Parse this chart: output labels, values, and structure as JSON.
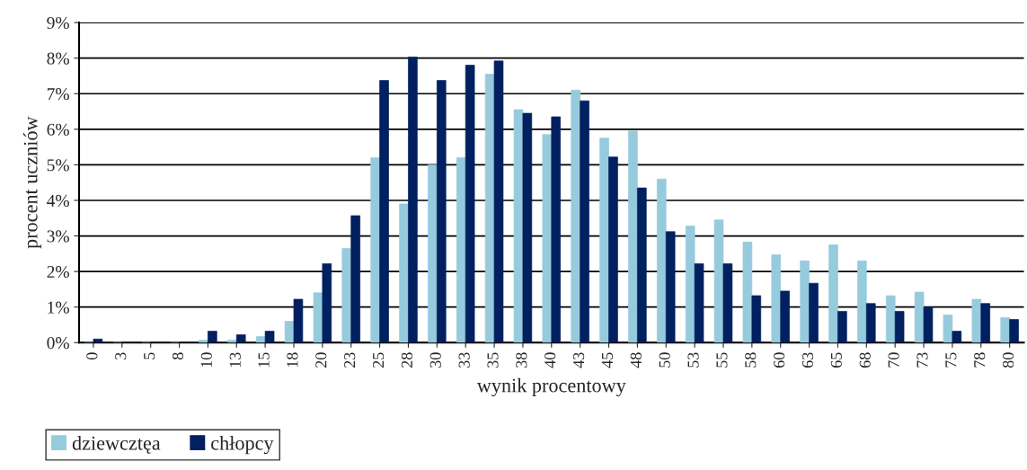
{
  "chart_data": {
    "type": "bar",
    "xlabel": "wynik procentowy",
    "ylabel": "procent uczniów",
    "categories": [
      "0",
      "3",
      "5",
      "8",
      "10",
      "13",
      "15",
      "18",
      "20",
      "23",
      "25",
      "28",
      "30",
      "33",
      "35",
      "38",
      "40",
      "43",
      "45",
      "48",
      "50",
      "53",
      "55",
      "58",
      "60",
      "63",
      "65",
      "68",
      "70",
      "73",
      "75",
      "78",
      "80"
    ],
    "series": [
      {
        "name": "dziewcztęa",
        "color": "#96cbdd",
        "values": [
          0,
          0,
          0,
          0,
          0.07,
          0.07,
          0.17,
          0.6,
          1.4,
          2.65,
          5.2,
          3.9,
          5.0,
          5.2,
          7.55,
          6.55,
          5.85,
          7.1,
          5.75,
          5.95,
          4.6,
          3.28,
          3.45,
          2.83,
          2.47,
          2.3,
          2.75,
          2.3,
          1.32,
          1.42,
          0.78,
          1.22,
          0.7
        ]
      },
      {
        "name": "chłopcy",
        "color": "#002060",
        "values": [
          0.1,
          0,
          0,
          0,
          0.32,
          0.22,
          0.32,
          1.22,
          2.22,
          3.57,
          7.37,
          8.03,
          7.37,
          7.8,
          7.92,
          6.45,
          6.35,
          6.8,
          5.22,
          4.35,
          3.12,
          2.22,
          2.22,
          1.32,
          1.45,
          1.67,
          0.88,
          1.1,
          0.88,
          1.0,
          0.32,
          1.1,
          0.65
        ]
      }
    ],
    "ylim": [
      0,
      9
    ],
    "yticks": [
      {
        "value": 0,
        "label": "0%"
      },
      {
        "value": 1,
        "label": "1%"
      },
      {
        "value": 2,
        "label": "2%"
      },
      {
        "value": 3,
        "label": "3%"
      },
      {
        "value": 4,
        "label": "4%"
      },
      {
        "value": 5,
        "label": "5%"
      },
      {
        "value": 6,
        "label": "6%"
      },
      {
        "value": 7,
        "label": "7%"
      },
      {
        "value": 8,
        "label": "8%"
      },
      {
        "value": 9,
        "label": "9%"
      }
    ],
    "grid": "y",
    "legend": "bottom left"
  }
}
